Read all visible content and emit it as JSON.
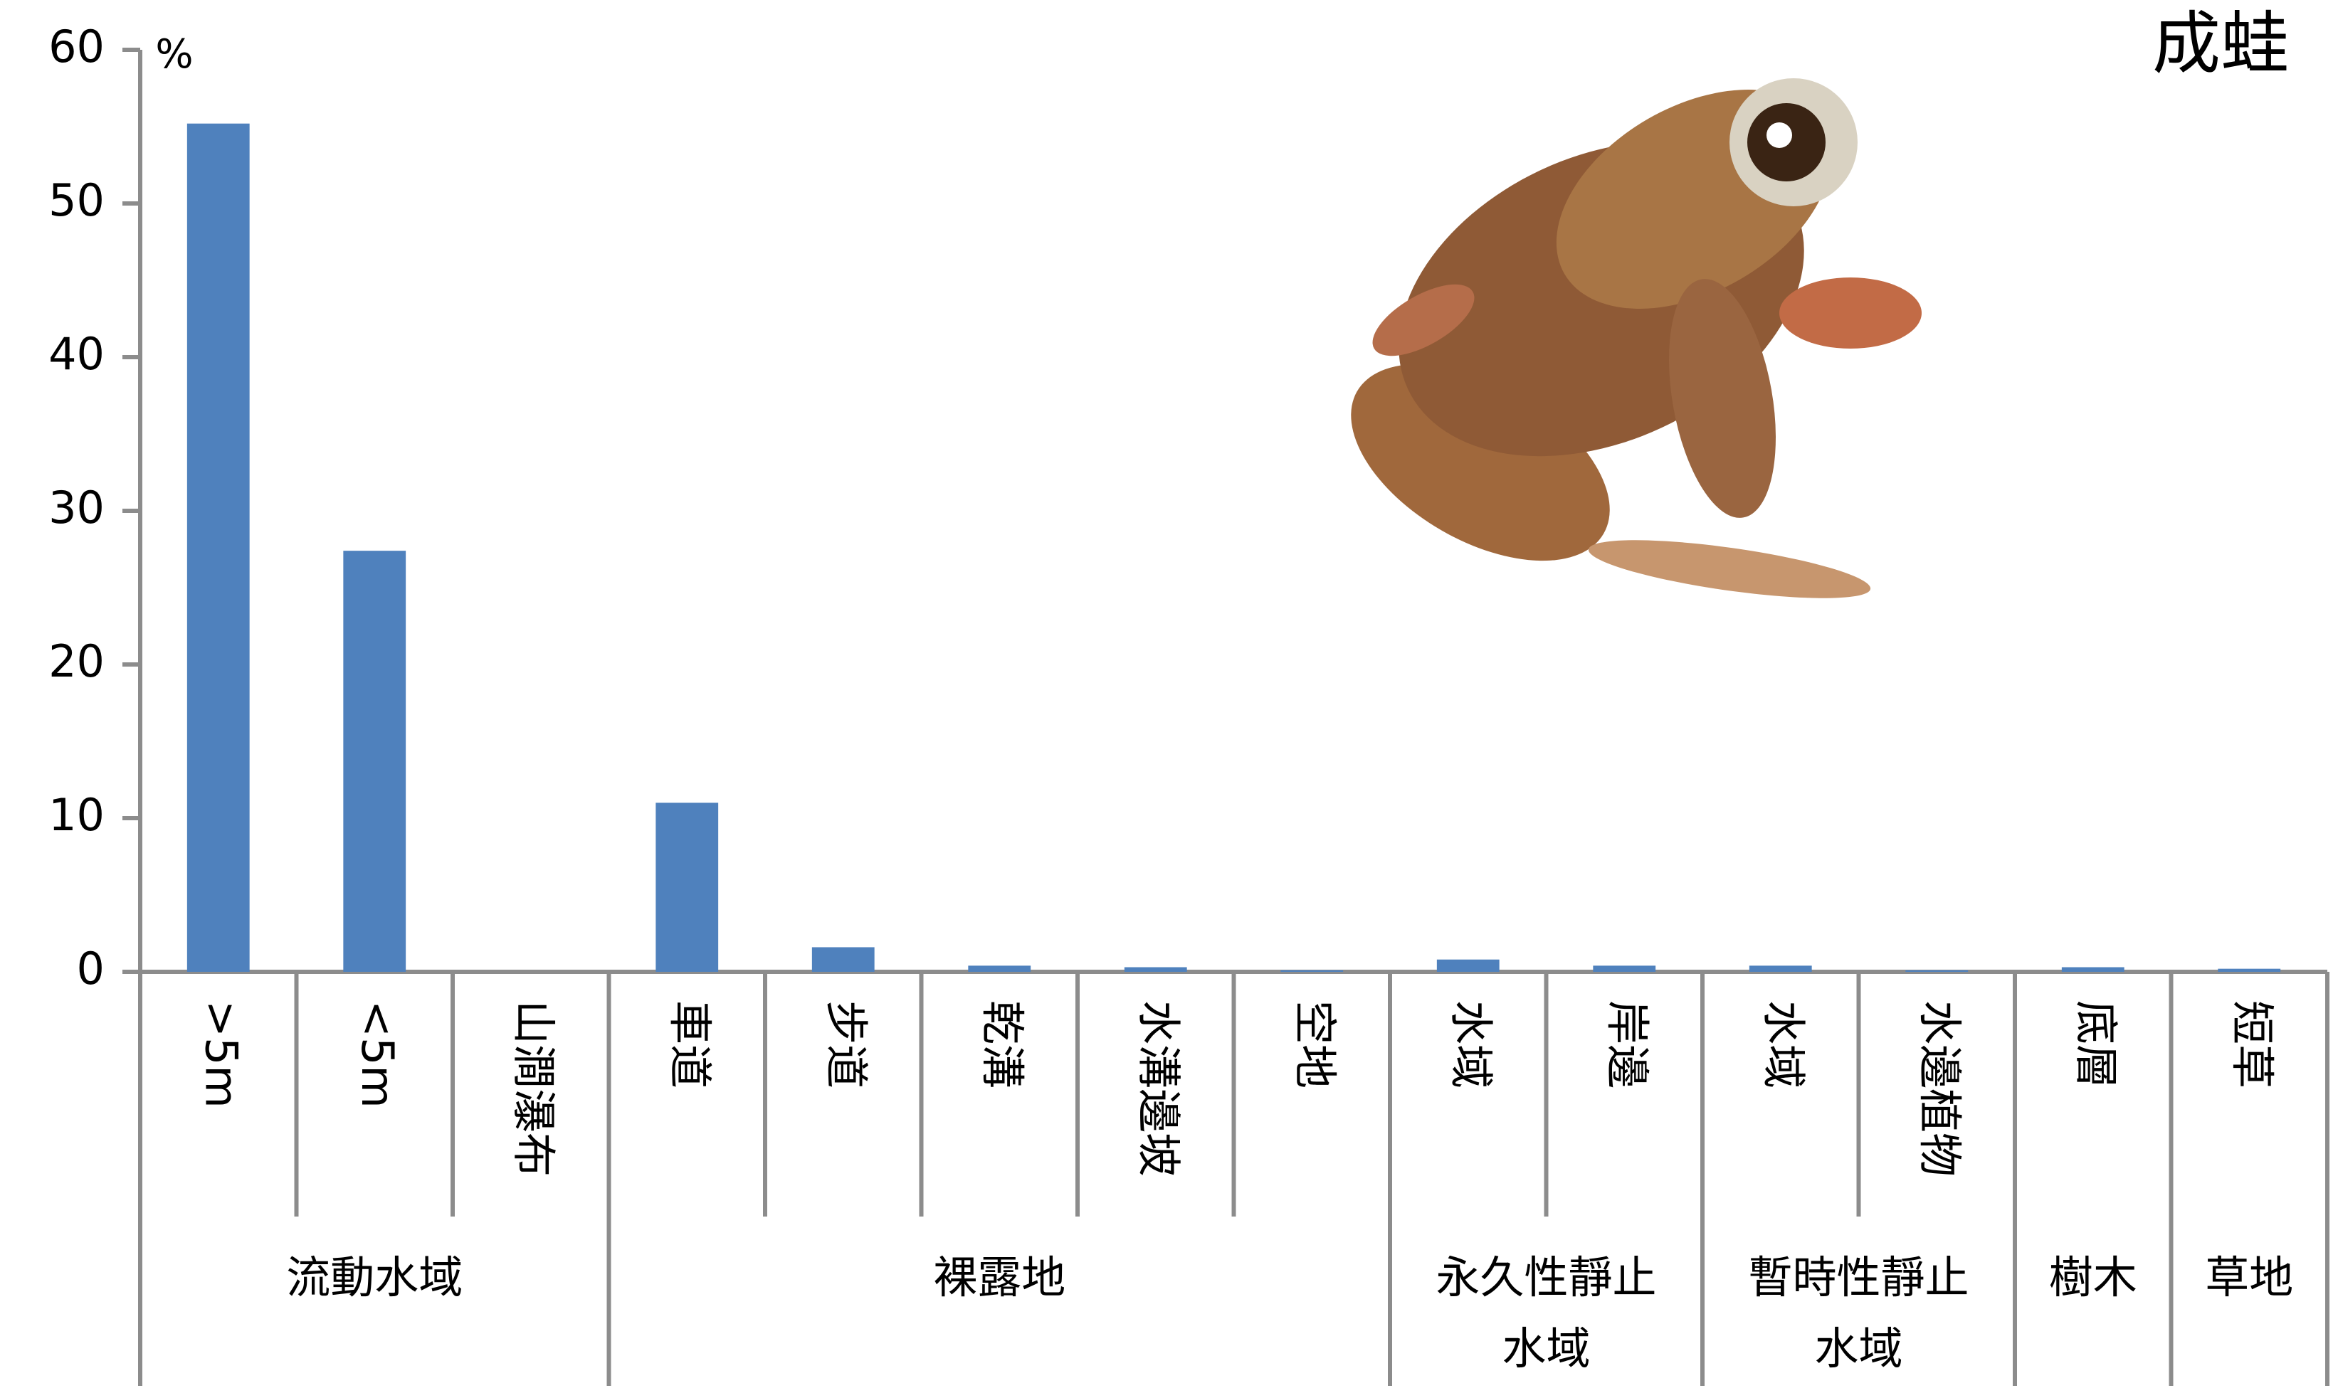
{
  "chart_data": {
    "type": "bar",
    "title": "成蛙",
    "y_unit": "%",
    "color": "#4f81bd",
    "ylim": [
      0,
      60
    ],
    "yticks": [
      0,
      10,
      20,
      30,
      40,
      50,
      60
    ],
    "groups": [
      {
        "name_lines": [
          "流動水域"
        ],
        "categories": [
          ">5m",
          "<5m",
          "山澗瀑布"
        ],
        "values": [
          55.2,
          27.4,
          0
        ]
      },
      {
        "name_lines": [
          "裸露地"
        ],
        "categories": [
          "車道",
          "步道",
          "乾溝",
          "水溝邊坡",
          "空地"
        ],
        "values": [
          11,
          1.6,
          0.4,
          0.3,
          0.1
        ]
      },
      {
        "name_lines": [
          "永久性靜止",
          "水域"
        ],
        "categories": [
          "水域",
          "岸邊"
        ],
        "values": [
          0.8,
          0.4
        ]
      },
      {
        "name_lines": [
          "暫時性靜止",
          "水域"
        ],
        "categories": [
          "水域",
          "水邊植物"
        ],
        "values": [
          0.4,
          0.1
        ]
      },
      {
        "name_lines": [
          "樹木"
        ],
        "categories": [
          "底層"
        ],
        "values": [
          0.3
        ]
      },
      {
        "name_lines": [
          "草地"
        ],
        "categories": [
          "短草"
        ],
        "values": [
          0.2
        ]
      }
    ]
  }
}
